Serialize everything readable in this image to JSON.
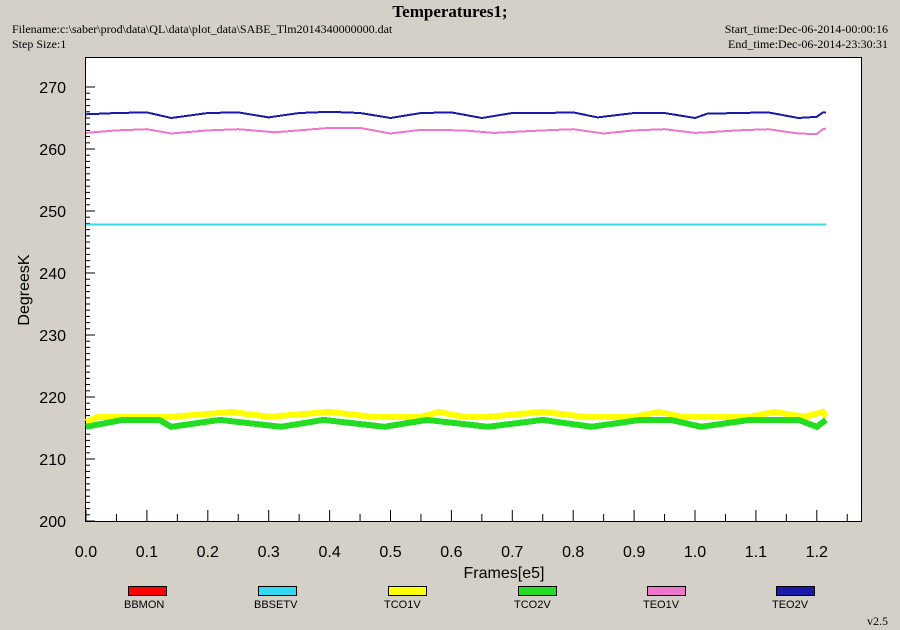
{
  "header": {
    "title": "Temperatures1;",
    "filename": "Filename:c:\\saber\\prod\\data\\QL\\data\\plot_data\\SABE_Tlm2014340000000.dat",
    "step_size": "Step Size:1",
    "start_time": "Start_time:Dec-06-2014-00:00:16",
    "end_time": "End_time:Dec-06-2014-23:30:31"
  },
  "version": "v2.5",
  "chart_data": {
    "type": "line",
    "title": "Temperatures1;",
    "xlabel": "Frames[e5]",
    "ylabel": "DegreesK",
    "xlim": [
      0.0,
      1.27
    ],
    "ylim": [
      200,
      275
    ],
    "xticks": [
      "0.0",
      "0.1",
      "0.2",
      "0.3",
      "0.4",
      "0.5",
      "0.6",
      "0.7",
      "0.8",
      "0.9",
      "1.0",
      "1.1",
      "1.2"
    ],
    "yticks": [
      "200",
      "210",
      "220",
      "230",
      "240",
      "250",
      "260",
      "270"
    ],
    "grid": false,
    "legend_position": "bottom",
    "series": [
      {
        "name": "BBMON",
        "color": "#ff0000",
        "x": [],
        "y": []
      },
      {
        "name": "BBSETV",
        "color": "#33d9f0",
        "x": [
          0.0,
          0.2,
          0.4,
          0.6,
          0.8,
          1.0,
          1.2,
          1.215
        ],
        "y": [
          247.8,
          247.8,
          247.8,
          247.8,
          247.8,
          247.8,
          247.8,
          247.8
        ]
      },
      {
        "name": "TCO1V",
        "color": "#ffff00",
        "x": [
          0.0,
          0.02,
          0.06,
          0.14,
          0.24,
          0.3,
          0.4,
          0.47,
          0.55,
          0.58,
          0.62,
          0.66,
          0.75,
          0.82,
          0.9,
          0.94,
          0.98,
          1.02,
          1.09,
          1.13,
          1.18,
          1.21,
          1.215
        ],
        "y": [
          216.0,
          216.8,
          216.8,
          216.8,
          217.6,
          216.8,
          217.6,
          216.8,
          216.8,
          217.6,
          216.8,
          216.8,
          217.6,
          216.8,
          216.8,
          217.6,
          216.8,
          216.8,
          216.8,
          217.6,
          216.8,
          217.6,
          216.8
        ]
      },
      {
        "name": "TCO2V",
        "color": "#22dd22",
        "x": [
          0.0,
          0.06,
          0.12,
          0.14,
          0.22,
          0.32,
          0.39,
          0.49,
          0.56,
          0.66,
          0.75,
          0.83,
          0.91,
          0.96,
          1.01,
          1.09,
          1.17,
          1.2,
          1.215
        ],
        "y": [
          215.2,
          216.3,
          216.3,
          215.2,
          216.3,
          215.2,
          216.3,
          215.2,
          216.3,
          215.2,
          216.3,
          215.2,
          216.3,
          216.3,
          215.2,
          216.3,
          216.3,
          215.2,
          216.3
        ]
      },
      {
        "name": "TEO1V",
        "color": "#ee77cc",
        "x": [
          0.0,
          0.05,
          0.1,
          0.14,
          0.2,
          0.25,
          0.31,
          0.4,
          0.45,
          0.5,
          0.55,
          0.62,
          0.67,
          0.75,
          0.8,
          0.85,
          0.9,
          0.95,
          1.0,
          1.02,
          1.07,
          1.12,
          1.17,
          1.2,
          1.21,
          1.215
        ],
        "y": [
          262.6,
          263.0,
          263.2,
          262.5,
          263.0,
          263.2,
          262.7,
          263.4,
          263.4,
          262.5,
          263.1,
          263.0,
          262.6,
          263.0,
          263.2,
          262.5,
          263.0,
          263.2,
          262.6,
          262.7,
          263.0,
          263.2,
          262.5,
          262.4,
          263.2,
          263.3
        ]
      },
      {
        "name": "TEO2V",
        "color": "#1a1aaa",
        "x": [
          0.0,
          0.05,
          0.1,
          0.14,
          0.2,
          0.25,
          0.3,
          0.35,
          0.4,
          0.45,
          0.5,
          0.55,
          0.6,
          0.65,
          0.7,
          0.75,
          0.8,
          0.84,
          0.9,
          0.95,
          1.0,
          1.02,
          1.07,
          1.12,
          1.17,
          1.2,
          1.21,
          1.215
        ],
        "y": [
          265.6,
          265.8,
          265.9,
          265.0,
          265.8,
          265.9,
          265.1,
          265.8,
          266.0,
          265.8,
          265.0,
          265.8,
          265.9,
          265.0,
          265.8,
          265.8,
          265.9,
          265.1,
          265.8,
          265.8,
          265.0,
          265.7,
          265.8,
          265.9,
          265.0,
          265.2,
          265.9,
          265.9
        ]
      }
    ]
  }
}
